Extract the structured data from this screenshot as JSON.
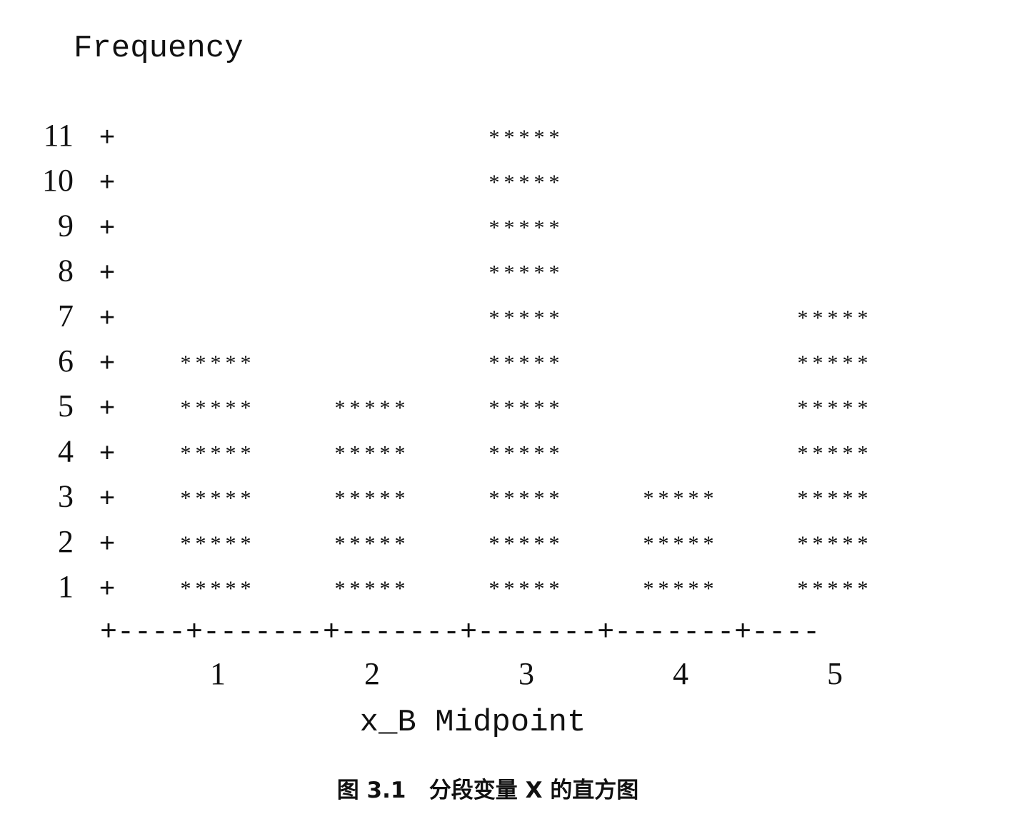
{
  "chart_data": {
    "type": "bar",
    "style": "text-histogram",
    "bar_glyph": "*****",
    "ylabel": "Frequency",
    "xlabel": "x_B Midpoint",
    "categories": [
      "1",
      "2",
      "3",
      "4",
      "5"
    ],
    "values": [
      6,
      5,
      11,
      3,
      7
    ],
    "yticks": [
      "1",
      "2",
      "3",
      "4",
      "5",
      "6",
      "7",
      "8",
      "9",
      "10",
      "11"
    ],
    "ylim": [
      1,
      11
    ],
    "tick_mark": "+",
    "axis_line": "+----+-------+-------+-------+-------+----",
    "grid": false,
    "legend": "none"
  },
  "caption": "图 3.1   分段变量 X 的直方图",
  "colors": {
    "ink": "#111111",
    "background": "#ffffff"
  }
}
